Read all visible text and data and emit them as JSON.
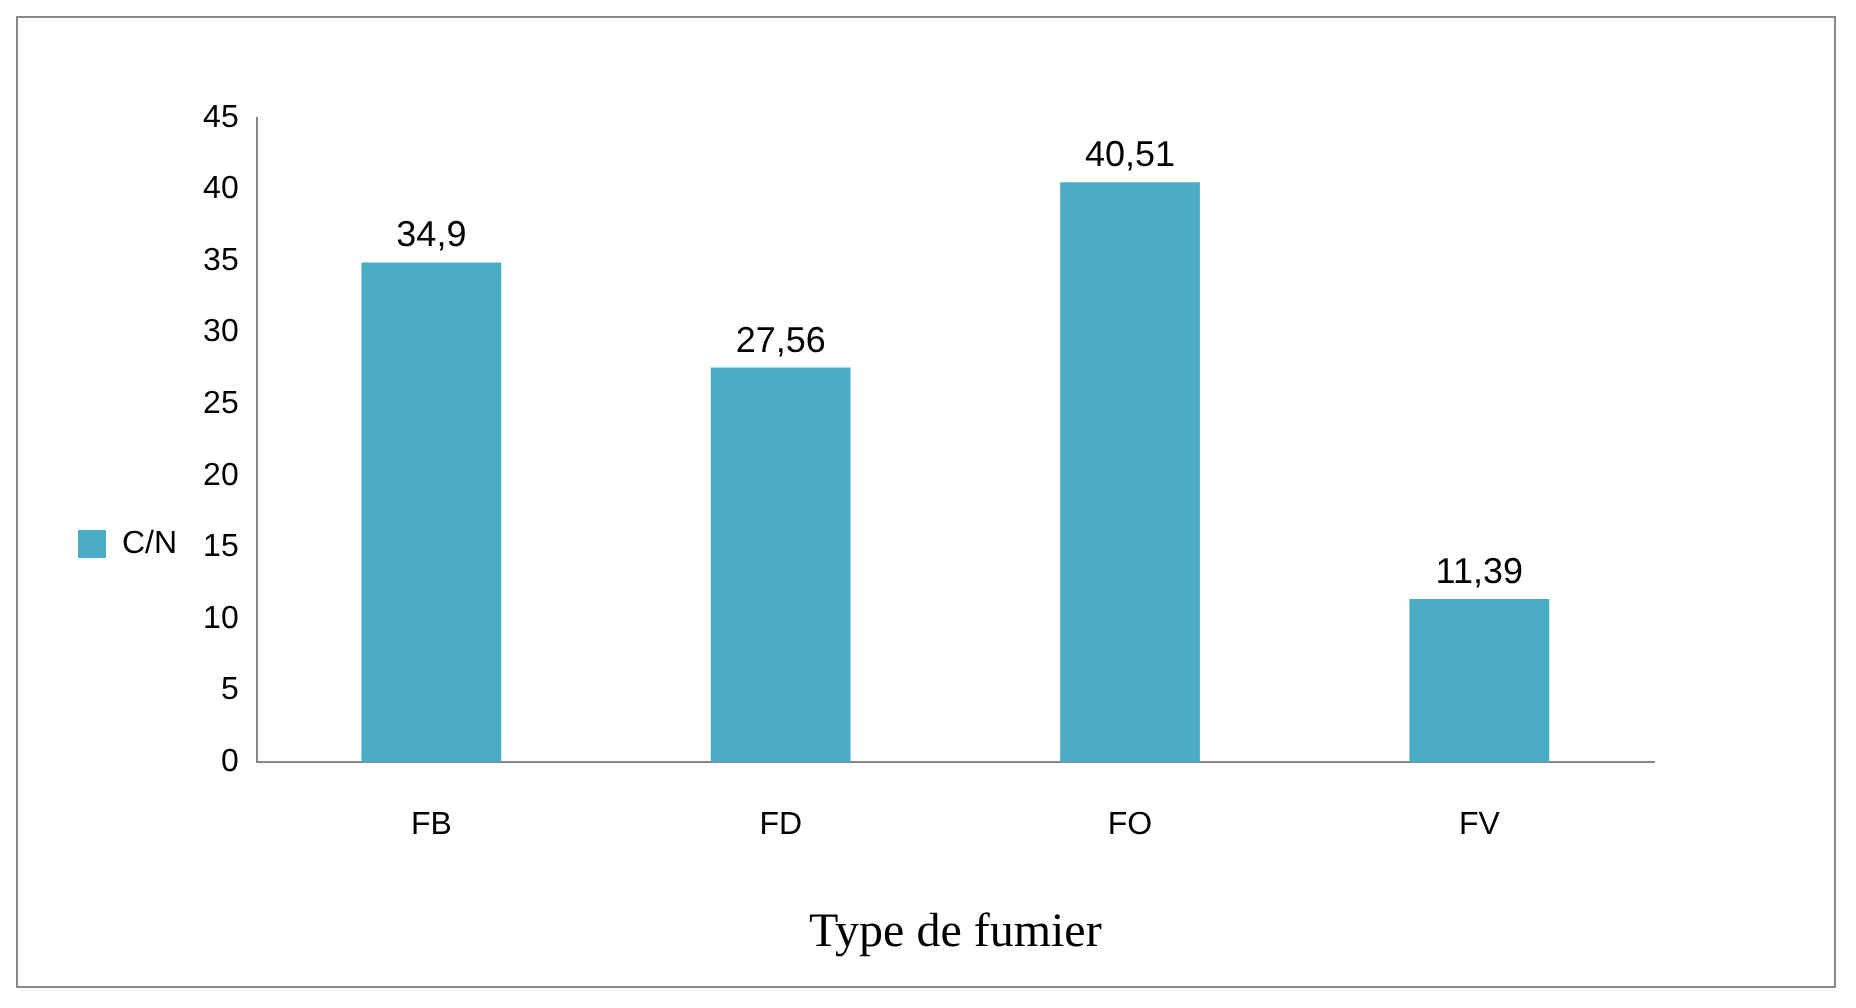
{
  "chart_data": {
    "type": "bar",
    "xlabel": "Type de fumier",
    "categories": [
      "FB",
      "FD",
      "FO",
      "FV"
    ],
    "series": [
      {
        "name": "C/N",
        "color": "#4bacc6",
        "values": [
          34.9,
          27.56,
          40.51,
          11.39
        ],
        "value_labels": [
          "34,9",
          "27,56",
          "40,51",
          "11,39"
        ]
      }
    ],
    "ylim": [
      0,
      45
    ],
    "yticks": [
      0,
      5,
      10,
      15,
      20,
      25,
      30,
      35,
      40,
      45
    ],
    "grid": false,
    "legend": "left"
  }
}
